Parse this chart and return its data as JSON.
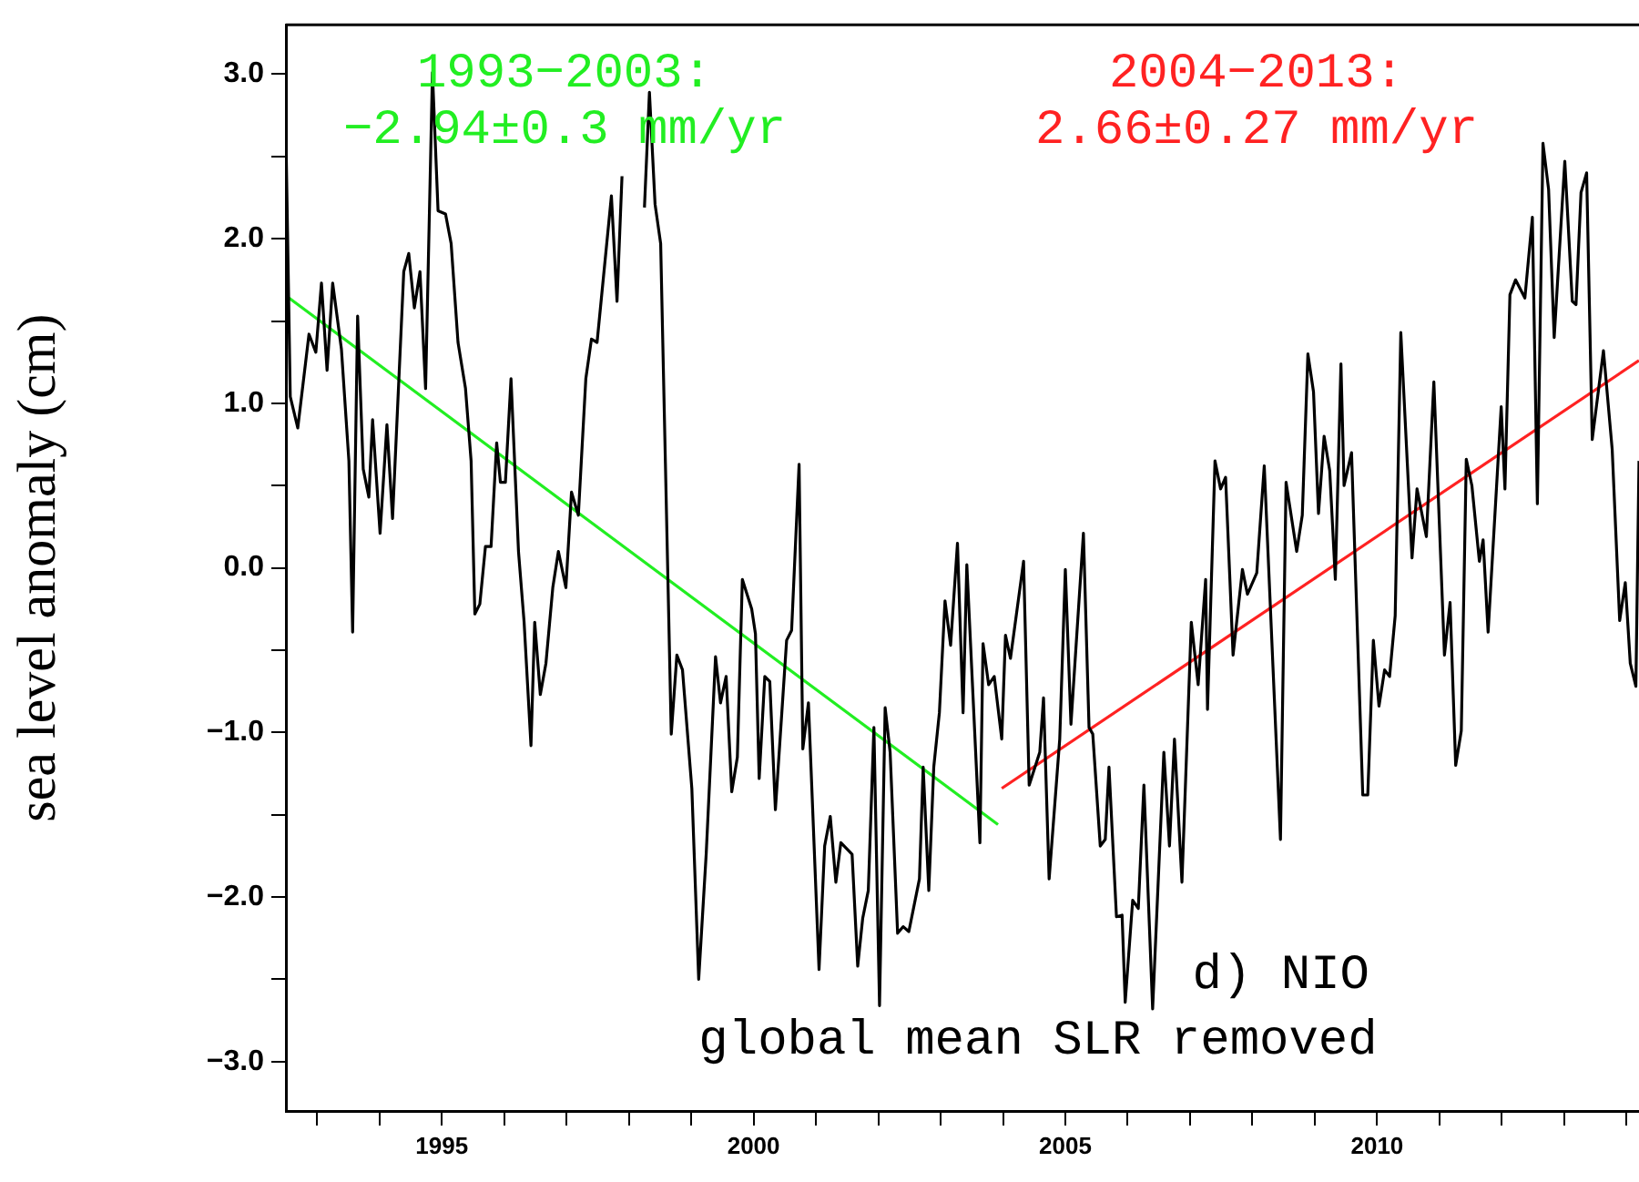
{
  "chart_data": {
    "type": "line",
    "ylabel": "sea level anomaly (cm)",
    "xlim": [
      1992.5,
      2014.2
    ],
    "xticks": [
      {
        "value": 1993,
        "label": null
      },
      {
        "value": 1994,
        "label": null
      },
      1995,
      {
        "value": 1996,
        "label": null
      },
      {
        "value": 1997,
        "label": null
      },
      {
        "value": 1998,
        "label": null
      },
      {
        "value": 1999,
        "label": null
      },
      2000,
      {
        "value": 2001,
        "label": null
      },
      {
        "value": 2002,
        "label": null
      },
      {
        "value": 2003,
        "label": null
      },
      {
        "value": 2004,
        "label": null
      },
      2005,
      {
        "value": 2006,
        "label": null
      },
      {
        "value": 2007,
        "label": null
      },
      {
        "value": 2008,
        "label": null
      },
      {
        "value": 2009,
        "label": null
      },
      2010,
      {
        "value": 2011,
        "label": null
      },
      {
        "value": 2012,
        "label": null
      },
      {
        "value": 2013,
        "label": null
      },
      {
        "value": 2014,
        "label": null
      }
    ],
    "ylim": [
      -3.3,
      3.3
    ],
    "yticks": [
      {
        "value": -3,
        "label": "−3.0"
      },
      {
        "value": -2.5,
        "label": null
      },
      {
        "value": -2,
        "label": "−2.0"
      },
      {
        "value": -1.5,
        "label": null
      },
      {
        "value": -1,
        "label": "−1.0"
      },
      {
        "value": -0.5,
        "label": null
      },
      {
        "value": 0,
        "label": "0.0"
      },
      {
        "value": 0.5,
        "label": null
      },
      {
        "value": 1,
        "label": "1.0"
      },
      {
        "value": 1.5,
        "label": null
      },
      {
        "value": 2,
        "label": "2.0"
      },
      {
        "value": 2.5,
        "label": null
      },
      {
        "value": 3,
        "label": "3.0"
      }
    ],
    "grid": false,
    "legend": false,
    "marker": "none",
    "line_style": "solid",
    "series": [
      {
        "color": "#000000",
        "x": [
          1992.5,
          1992.57,
          1992.69,
          1992.87,
          1992.98,
          1993.07,
          1993.16,
          1993.25,
          1993.39,
          1993.51,
          1993.57,
          1993.65,
          1993.74,
          1993.83,
          1993.89,
          1994.01,
          1994.12,
          1994.21,
          1994.39,
          1994.47,
          1994.56,
          1994.65,
          1994.74,
          1994.85,
          1994.94,
          1995.06,
          1995.15,
          1995.26,
          1995.38,
          1995.47,
          1995.53,
          1995.61,
          1995.7,
          1995.79,
          1995.88,
          1995.94,
          1996.02,
          1996.11,
          1996.23,
          1996.32,
          1996.43,
          1996.49,
          1996.58,
          1996.67,
          1996.78,
          1996.87,
          1996.99,
          1997.08,
          1997.19,
          1997.31,
          1997.4,
          1997.49,
          1997.72,
          1997.81,
          1997.89,
          1997.95,
          1998.1,
          1998.25,
          1998.33,
          1998.42,
          1998.51,
          1998.68,
          1998.77,
          1998.86,
          1999.01,
          1999.12,
          1999.24,
          1999.39,
          1999.47,
          1999.56,
          1999.65,
          1999.74,
          1999.82,
          1999.97,
          2000.03,
          2000.09,
          2000.18,
          2000.26,
          2000.35,
          2000.53,
          2000.61,
          2000.73,
          2000.79,
          2000.88,
          2001.05,
          2001.14,
          2001.23,
          2001.32,
          2001.4,
          2001.58,
          2001.67,
          2001.75,
          2001.84,
          2001.93,
          2002.02,
          2002.11,
          2002.19,
          2002.31,
          2002.4,
          2002.49,
          2002.66,
          2002.72,
          2002.81,
          2002.89,
          2002.98,
          2003.07,
          2003.16,
          2003.27,
          2003.36,
          2003.42,
          2003.63,
          2003.68,
          2003.77,
          2003.86,
          2003.98,
          2004.04,
          2004.12,
          2004.33,
          2004.42,
          2004.59,
          2004.65,
          2004.74,
          2004.91,
          2005.0,
          2005.09,
          2005.29,
          2005.38,
          2005.44,
          2005.56,
          2005.64,
          2005.7,
          2005.82,
          2005.91,
          2005.96,
          2006.08,
          2006.17,
          2006.26,
          2006.4,
          2006.58,
          2006.67,
          2006.75,
          2006.87,
          2007.02,
          2007.13,
          2007.25,
          2007.28,
          2007.4,
          2007.49,
          2007.57,
          2007.69,
          2007.84,
          2007.92,
          2008.07,
          2008.19,
          2008.45,
          2008.54,
          2008.71,
          2008.8,
          2008.89,
          2008.98,
          2009.06,
          2009.15,
          2009.24,
          2009.33,
          2009.42,
          2009.47,
          2009.59,
          2009.77,
          2009.85,
          2009.94,
          2010.03,
          2010.12,
          2010.2,
          2010.29,
          2010.38,
          2010.56,
          2010.64,
          2010.79,
          2010.91,
          2011.08,
          2011.17,
          2011.26,
          2011.35,
          2011.43,
          2011.52,
          2011.64,
          2011.7,
          2011.78,
          2011.99,
          2012.05,
          2012.13,
          2012.22,
          2012.37,
          2012.49,
          2012.57,
          2012.66,
          2012.75,
          2012.84,
          2013.01,
          2013.13,
          2013.19,
          2013.27,
          2013.36,
          2013.45,
          2013.63,
          2013.77,
          2013.89,
          2013.98,
          2014.06,
          2014.15,
          2014.2
        ],
        "values": [
          2.63,
          1.04,
          0.85,
          1.42,
          1.31,
          1.73,
          1.2,
          1.73,
          1.33,
          0.65,
          -0.39,
          1.53,
          0.6,
          0.43,
          0.9,
          0.21,
          0.87,
          0.3,
          1.8,
          1.91,
          1.58,
          1.8,
          1.09,
          3.01,
          2.17,
          2.15,
          1.97,
          1.37,
          1.09,
          0.65,
          -0.28,
          -0.22,
          0.13,
          0.13,
          0.76,
          0.52,
          0.52,
          1.15,
          0.1,
          -0.33,
          -1.08,
          -0.33,
          -0.77,
          -0.58,
          -0.12,
          0.1,
          -0.12,
          0.46,
          0.32,
          1.15,
          1.39,
          1.37,
          2.26,
          1.62,
          2.38,
          null,
          null,
          2.19,
          2.89,
          2.21,
          1.97,
          -1.01,
          -0.53,
          -0.62,
          -1.34,
          -2.5,
          -1.74,
          -0.54,
          -0.82,
          -0.66,
          -1.36,
          -1.15,
          -0.07,
          -0.25,
          -0.4,
          -1.28,
          -0.66,
          -0.69,
          -1.47,
          -0.44,
          -0.38,
          0.63,
          -1.1,
          -0.82,
          -2.44,
          -1.69,
          -1.51,
          -1.91,
          -1.67,
          -1.74,
          -2.42,
          -2.13,
          -1.96,
          -0.97,
          -2.66,
          -0.85,
          -1.12,
          -2.22,
          -2.18,
          -2.21,
          -1.89,
          -1.21,
          -1.96,
          -1.21,
          -0.88,
          -0.2,
          -0.47,
          0.15,
          -0.88,
          0.02,
          -1.67,
          -0.46,
          -0.71,
          -0.66,
          -1.04,
          -0.41,
          -0.55,
          0.04,
          -1.32,
          -1.12,
          -0.79,
          -1.89,
          -1.04,
          -0.01,
          -0.95,
          0.21,
          -0.97,
          -1.01,
          -1.69,
          -1.65,
          -1.21,
          -2.12,
          -2.11,
          -2.64,
          -2.02,
          -2.07,
          -1.32,
          -2.68,
          -1.12,
          -1.69,
          -1.04,
          -1.91,
          -0.33,
          -0.71,
          -0.07,
          -0.86,
          0.65,
          0.48,
          0.55,
          -0.53,
          -0.01,
          -0.16,
          -0.03,
          0.62,
          -1.65,
          0.52,
          0.1,
          0.32,
          1.3,
          1.07,
          0.33,
          0.8,
          0.59,
          -0.07,
          1.24,
          0.5,
          0.7,
          -1.38,
          -1.38,
          -0.44,
          -0.84,
          -0.62,
          -0.66,
          -0.29,
          1.43,
          0.06,
          0.48,
          0.19,
          1.13,
          -0.53,
          -0.21,
          -1.2,
          -0.99,
          0.66,
          0.5,
          0.04,
          0.17,
          -0.39,
          0.98,
          0.48,
          1.66,
          1.75,
          1.64,
          2.13,
          0.39,
          2.58,
          2.3,
          1.4,
          2.47,
          1.62,
          1.6,
          2.28,
          2.4,
          0.78,
          1.32,
          0.72,
          -0.32,
          -0.09,
          -0.58,
          -0.72,
          0.65
        ]
      },
      {
        "color": "#22ee22",
        "x": [
          1992.55,
          2003.92
        ],
        "values": [
          1.64,
          -1.56
        ]
      },
      {
        "color": "#ff2222",
        "x": [
          2003.98,
          2014.2
        ],
        "values": [
          -1.34,
          1.26
        ]
      }
    ],
    "annotations": [
      "1993−2003:\n−2.94±0.3 mm/yr",
      "2004−2013:\n2.66±0.27 mm/yr",
      "d) NIO",
      "global mean SLR removed"
    ]
  }
}
